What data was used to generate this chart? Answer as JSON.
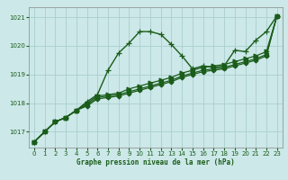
{
  "xlabel": "Graphe pression niveau de la mer (hPa)",
  "bg_color": "#cce8e8",
  "grid_color": "#aacece",
  "line_color": "#1a5c1a",
  "x_ticks": [
    0,
    1,
    2,
    3,
    4,
    5,
    6,
    7,
    8,
    9,
    10,
    11,
    12,
    13,
    14,
    15,
    16,
    17,
    18,
    19,
    20,
    21,
    22,
    23
  ],
  "y_ticks": [
    1017,
    1018,
    1019,
    1020,
    1021
  ],
  "ylim": [
    1016.45,
    1021.35
  ],
  "xlim": [
    -0.5,
    23.5
  ],
  "series": [
    {
      "x": [
        0,
        1,
        2,
        3,
        4,
        5,
        6,
        7,
        8,
        9,
        10,
        11,
        12,
        13,
        14,
        15,
        16,
        17,
        18,
        19,
        20,
        21,
        22,
        23
      ],
      "y": [
        1016.65,
        1017.0,
        1017.35,
        1017.5,
        1017.75,
        1018.05,
        1018.3,
        1019.15,
        1019.75,
        1020.1,
        1020.5,
        1020.5,
        1020.4,
        1020.05,
        1019.65,
        1019.2,
        1019.3,
        1019.25,
        1019.3,
        1019.85,
        1019.8,
        1020.2,
        1020.5,
        1021.05
      ],
      "marker": "+",
      "ms": 4.5,
      "lw": 1.0
    },
    {
      "x": [
        0,
        1,
        2,
        3,
        4,
        5,
        6,
        7,
        8,
        9,
        10,
        11,
        12,
        13,
        14,
        15,
        16,
        17,
        18,
        19,
        20,
        21,
        22,
        23
      ],
      "y": [
        1016.65,
        1017.0,
        1017.35,
        1017.5,
        1017.75,
        1018.0,
        1018.25,
        1018.3,
        1018.35,
        1018.5,
        1018.6,
        1018.7,
        1018.8,
        1018.9,
        1019.05,
        1019.15,
        1019.25,
        1019.3,
        1019.35,
        1019.45,
        1019.55,
        1019.65,
        1019.8,
        1021.05
      ],
      "marker": ">",
      "ms": 3.5,
      "lw": 0.9
    },
    {
      "x": [
        0,
        1,
        2,
        3,
        4,
        5,
        6,
        7,
        8,
        9,
        10,
        11,
        12,
        13,
        14,
        15,
        16,
        17,
        18,
        19,
        20,
        21,
        22,
        23
      ],
      "y": [
        1016.65,
        1017.0,
        1017.35,
        1017.5,
        1017.75,
        1017.95,
        1018.2,
        1018.25,
        1018.3,
        1018.4,
        1018.5,
        1018.6,
        1018.7,
        1018.8,
        1018.95,
        1019.05,
        1019.15,
        1019.2,
        1019.25,
        1019.35,
        1019.45,
        1019.55,
        1019.7,
        1021.05
      ],
      "marker": "s",
      "ms": 3.0,
      "lw": 0.9
    },
    {
      "x": [
        0,
        1,
        2,
        3,
        4,
        5,
        6,
        7,
        8,
        9,
        10,
        11,
        12,
        13,
        14,
        15,
        16,
        17,
        18,
        19,
        20,
        21,
        22,
        23
      ],
      "y": [
        1016.65,
        1017.0,
        1017.35,
        1017.5,
        1017.75,
        1017.9,
        1018.15,
        1018.2,
        1018.25,
        1018.35,
        1018.45,
        1018.55,
        1018.65,
        1018.75,
        1018.9,
        1019.0,
        1019.1,
        1019.15,
        1019.2,
        1019.3,
        1019.4,
        1019.5,
        1019.65,
        1021.05
      ],
      "marker": "D",
      "ms": 2.5,
      "lw": 0.9
    }
  ]
}
